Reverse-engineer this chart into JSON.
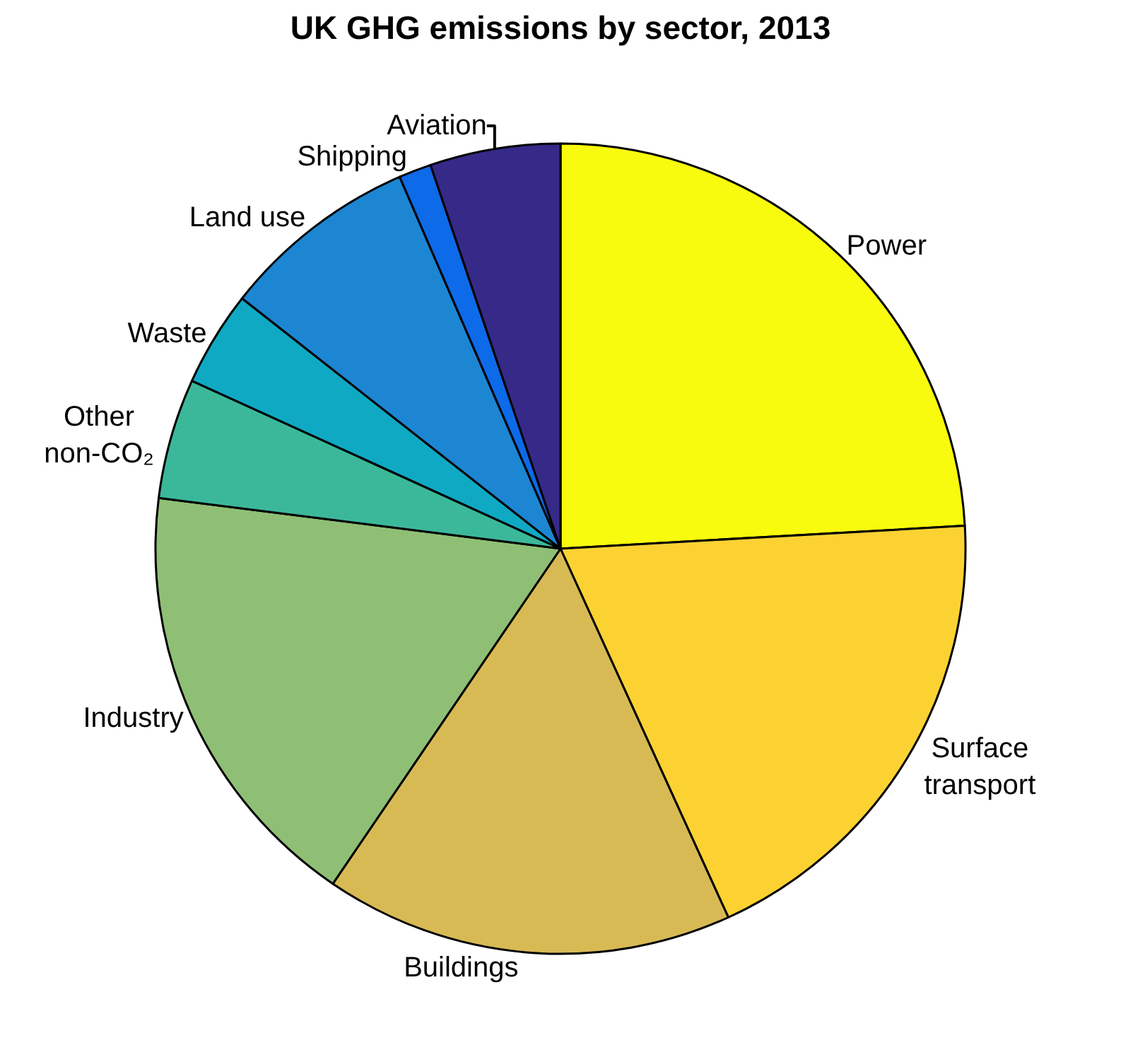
{
  "chart_data": {
    "type": "pie",
    "title": "UK GHG emissions by sector, 2013",
    "categories": [
      "Power",
      "Surface transport",
      "Buildings",
      "Industry",
      "Other non-CO₂",
      "Waste",
      "Land use",
      "Shipping",
      "Aviation"
    ],
    "values": [
      24.1,
      19.1,
      16.3,
      17.5,
      4.8,
      3.8,
      7.9,
      1.3,
      5.2
    ],
    "colors": [
      "#f9fb0e",
      "#fcd233",
      "#d8ba55",
      "#8fbf75",
      "#3bb89a",
      "#10a9c4",
      "#1c86d3",
      "#0d6ae8",
      "#352a87"
    ],
    "legend": false
  }
}
